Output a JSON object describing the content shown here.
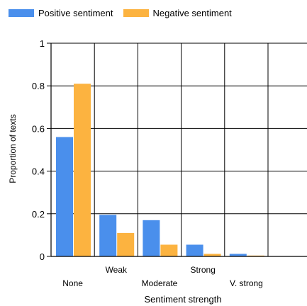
{
  "chart_data": {
    "type": "bar",
    "title": "",
    "xlabel": "Sentiment strength",
    "ylabel": "Proportion of texts",
    "categories": [
      "None",
      "Weak",
      "Moderate",
      "Strong",
      "V. strong"
    ],
    "series": [
      {
        "name": "Positive sentiment",
        "color": "#4a8fec",
        "values": [
          0.56,
          0.195,
          0.17,
          0.055,
          0.012
        ]
      },
      {
        "name": "Negative sentiment",
        "color": "#fcb340",
        "values": [
          0.81,
          0.11,
          0.055,
          0.012,
          0.004
        ]
      }
    ],
    "ylim": [
      0,
      1
    ],
    "yticks": [
      0,
      0.2,
      0.4,
      0.6,
      0.8,
      1
    ],
    "ytick_labels": [
      "0",
      "0.2",
      "0.4",
      "0.6",
      "0.8",
      "1"
    ],
    "grid": true,
    "legend_position": "top-left"
  }
}
